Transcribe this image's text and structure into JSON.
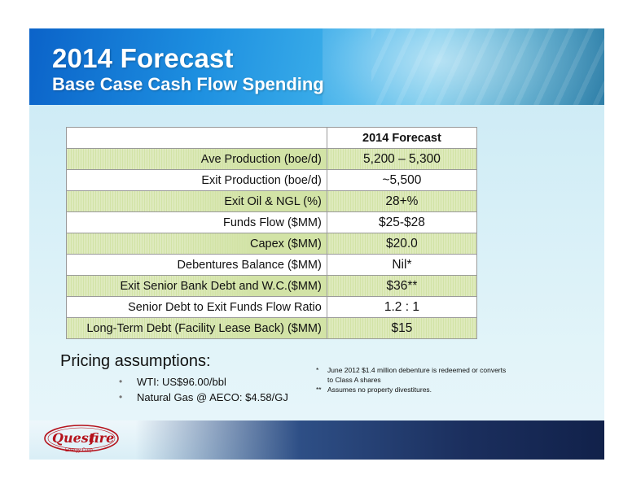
{
  "header": {
    "title": "2014 Forecast",
    "subtitle": "Base Case Cash Flow Spending"
  },
  "table": {
    "column_header": "2014 Forecast",
    "rows": [
      {
        "label": "Ave Production (boe/d)",
        "value": "5,200 – 5,300"
      },
      {
        "label": "Exit Production (boe/d)",
        "value": "~5,500"
      },
      {
        "label": "Exit Oil & NGL (%)",
        "value": "28+%"
      },
      {
        "label": "Funds Flow ($MM)",
        "value": "$25-$28"
      },
      {
        "label": "Capex ($MM)",
        "value": "$20.0"
      },
      {
        "label": "Debentures Balance ($MM)",
        "value": "Nil*"
      },
      {
        "label": "Exit Senior Bank Debt and W.C.($MM)",
        "value": "$36**"
      },
      {
        "label": "Senior Debt to Exit Funds Flow Ratio",
        "value": "1.2 : 1"
      },
      {
        "label": "Long-Term Debt (Facility Lease Back) ($MM)",
        "value": "$15"
      }
    ]
  },
  "pricing": {
    "title": "Pricing assumptions:",
    "items": [
      "WTI:  US$96.00/bbl",
      "Natural Gas @ AECO:  $4.58/GJ"
    ]
  },
  "notes": {
    "note1_mark": "*",
    "note1_line1": "June 2012 $1.4 million debenture  is redeemed or converts",
    "note1_line2": "to Class A shares",
    "note2_mark": "**",
    "note2_line1": "Assumes no property divestitures."
  },
  "logo": {
    "name_part1": "Quest",
    "name_part2": "fire",
    "tagline": "Energy Corp."
  },
  "colors": {
    "header_blue": "#1d8fe0",
    "row_green": "#d2e3a6",
    "logo_red": "#b5121b"
  }
}
